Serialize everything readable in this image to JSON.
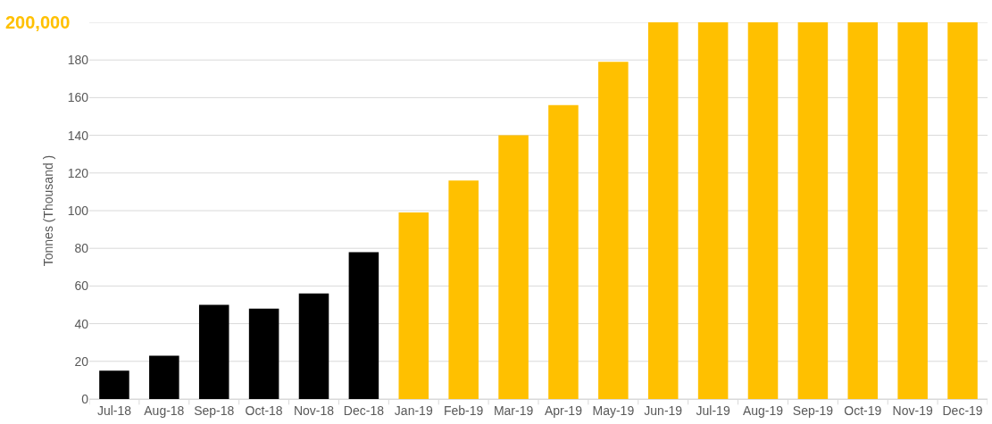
{
  "chart_data": {
    "type": "bar",
    "ylabel": "Tonnes (Thousand )",
    "categories": [
      "Jul-18",
      "Aug-18",
      "Sep-18",
      "Oct-18",
      "Nov-18",
      "Dec-18",
      "Jan-19",
      "Feb-19",
      "Mar-19",
      "Apr-19",
      "May-19",
      "Jun-19",
      "Jul-19",
      "Aug-19",
      "Sep-19",
      "Oct-19",
      "Nov-19",
      "Dec-19"
    ],
    "values": [
      15,
      23,
      50,
      48,
      56,
      78,
      99,
      116,
      140,
      156,
      179,
      200,
      200,
      200,
      200,
      200,
      200,
      200
    ],
    "colors": [
      "#000000",
      "#000000",
      "#000000",
      "#000000",
      "#000000",
      "#000000",
      "#ffc000",
      "#ffc000",
      "#ffc000",
      "#ffc000",
      "#ffc000",
      "#ffc000",
      "#ffc000",
      "#ffc000",
      "#ffc000",
      "#ffc000",
      "#ffc000",
      "#ffc000"
    ],
    "ylim": [
      0,
      200
    ],
    "yticks": [
      0,
      20,
      40,
      60,
      80,
      100,
      120,
      140,
      160,
      180,
      {
        "value": 200,
        "label": null
      }
    ],
    "grid": "y",
    "annotations": [
      "200,000"
    ]
  }
}
